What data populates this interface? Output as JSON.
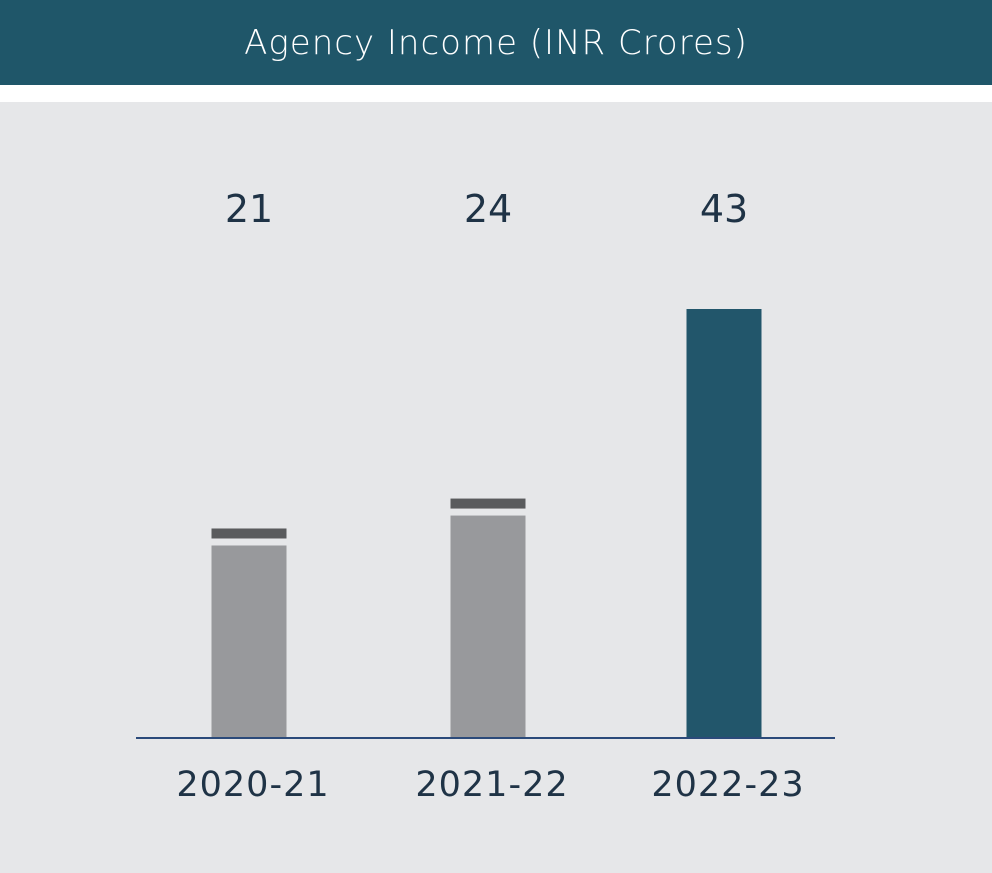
{
  "header": {
    "title": "Agency Income (INR Crores)"
  },
  "colors": {
    "header_bg": "#1f5669",
    "panel_bg": "#e6e7e9",
    "bar_previous": "#98999c",
    "bar_cap": "#5a5b5d",
    "bar_current": "#22566b",
    "axis": "#2b4a7a",
    "text": "#1f3346"
  },
  "chart_data": {
    "type": "bar",
    "title": "Agency Income (INR Crores)",
    "categories": [
      "2020-21",
      "2021-22",
      "2022-23"
    ],
    "values": [
      21,
      24,
      43
    ],
    "value_labels": [
      "21",
      "24",
      "43"
    ],
    "highlight_index": 2,
    "xlabel": "",
    "ylabel": "",
    "ylim": [
      0,
      43
    ],
    "grid": false,
    "legend": "none"
  }
}
